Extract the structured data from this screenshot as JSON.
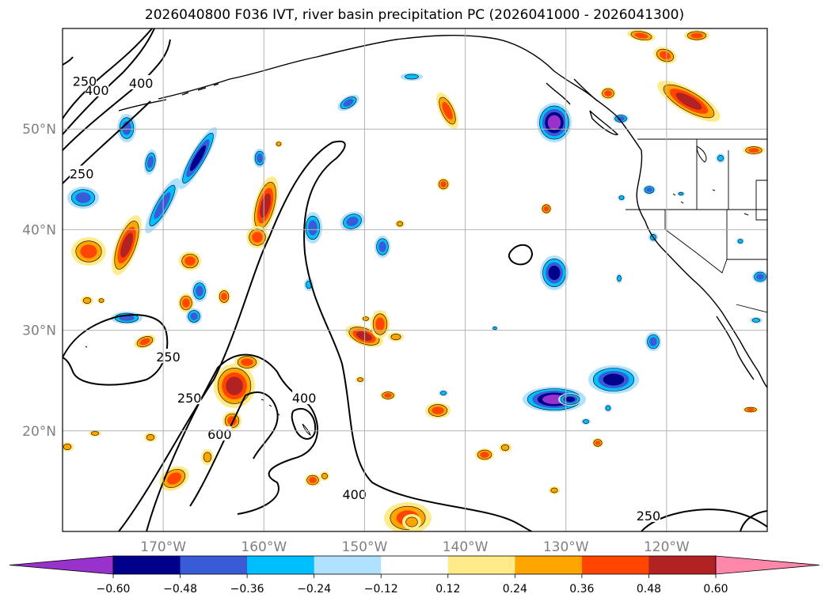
{
  "title": "2026040800 F036 IVT, river basin precipitation PC (2026041000 - 2026041300)",
  "map": {
    "lon_range": [
      -180,
      -110
    ],
    "lat_range": [
      10,
      60
    ],
    "lat_ticks": [
      {
        "value": 50,
        "label": "50°N"
      },
      {
        "value": 40,
        "label": "40°N"
      },
      {
        "value": 30,
        "label": "30°N"
      },
      {
        "value": 20,
        "label": "20°N"
      }
    ],
    "lon_ticks": [
      {
        "value": -170,
        "label": "170°W"
      },
      {
        "value": -160,
        "label": "160°W"
      },
      {
        "value": -150,
        "label": "150°W"
      },
      {
        "value": -140,
        "label": "140°W"
      },
      {
        "value": -130,
        "label": "130°W"
      },
      {
        "value": -120,
        "label": "120°W"
      }
    ],
    "grid": true,
    "contour_labels": [
      {
        "text": "250",
        "lon": -177.8,
        "lat": 54.7
      },
      {
        "text": "400",
        "lon": -176.6,
        "lat": 53.8
      },
      {
        "text": "400",
        "lon": -172.2,
        "lat": 54.5
      },
      {
        "text": "250",
        "lon": -178.1,
        "lat": 45.5
      },
      {
        "text": "250",
        "lon": -169.5,
        "lat": 27.3
      },
      {
        "text": "250",
        "lon": -167.4,
        "lat": 23.2
      },
      {
        "text": "600",
        "lon": -164.4,
        "lat": 19.6
      },
      {
        "text": "400",
        "lon": -156.0,
        "lat": 23.2
      },
      {
        "text": "400",
        "lon": -151.0,
        "lat": 13.6
      },
      {
        "text": "250",
        "lon": -121.8,
        "lat": 11.5
      }
    ]
  },
  "colorbar": {
    "levels": [
      "-0.60",
      "-0.48",
      "-0.36",
      "-0.24",
      "-0.12",
      "0.12",
      "0.24",
      "0.36",
      "0.48",
      "0.60"
    ],
    "colors": [
      "#9932cc",
      "#00008b",
      "#3a5bd6",
      "#00bfff",
      "#b0e2ff",
      "#ffffff",
      "#ffeb8a",
      "#ffa500",
      "#ff4500",
      "#b22222",
      "#ff88aa"
    ]
  },
  "colors": {
    "pos1": "#ffeb8a",
    "pos2": "#ffa500",
    "pos3": "#ff4500",
    "pos4": "#b22222",
    "pos5": "#ff88aa",
    "neg1": "#b0e2ff",
    "neg2": "#00bfff",
    "neg3": "#3a5bd6",
    "neg4": "#00008b",
    "neg5": "#9932cc"
  }
}
